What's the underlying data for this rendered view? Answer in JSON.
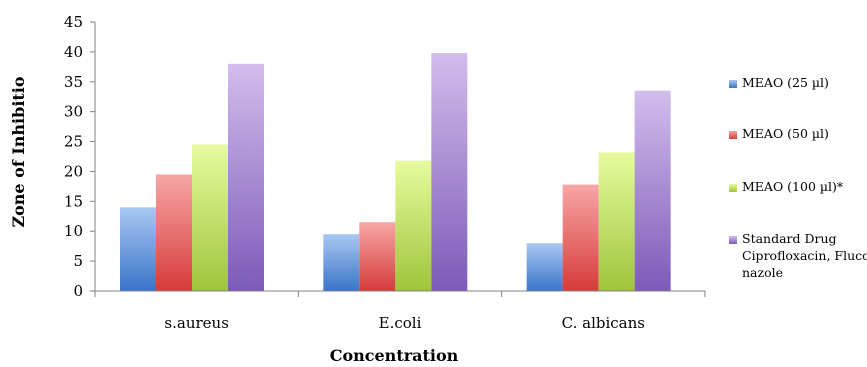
{
  "chart_data": {
    "type": "bar",
    "title": "",
    "xlabel": "Concentration",
    "ylabel": "Zone of Inhibitio",
    "ylim": [
      0,
      45
    ],
    "yticks": [
      0,
      5,
      10,
      15,
      20,
      25,
      30,
      35,
      40,
      45
    ],
    "categories": [
      "s.aureus",
      "E.coli",
      "C. albicans"
    ],
    "legend_position": "right",
    "series": [
      {
        "name": "MEAO (25 µl)",
        "values": [
          14,
          9.5,
          8
        ],
        "color_top": "#a9c8f2",
        "color_bottom": "#3a74c9"
      },
      {
        "name": "MEAO (50 µl)",
        "values": [
          19.5,
          11.5,
          17.8
        ],
        "color_top": "#f7a6a6",
        "color_bottom": "#d73b3b"
      },
      {
        "name": "MEAO (100 µl)*",
        "values": [
          24.5,
          21.8,
          23.2
        ],
        "color_top": "#e7fb9e",
        "color_bottom": "#9ec53c"
      },
      {
        "name_lines": [
          "Standard Drug",
          "Ciprofloxacin, Fluco",
          "nazole"
        ],
        "values": [
          38,
          39.8,
          33.5
        ],
        "color_top": "#d2bdec",
        "color_bottom": "#7d5ab8"
      }
    ]
  }
}
